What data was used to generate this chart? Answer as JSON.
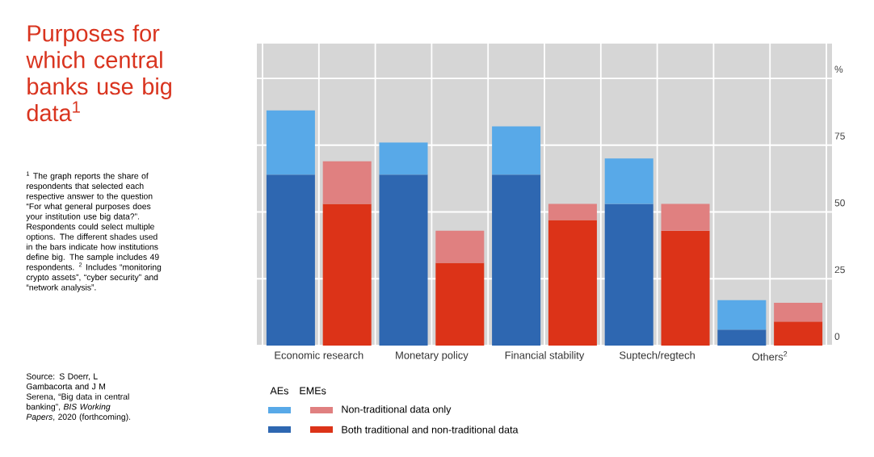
{
  "chart_data": {
    "type": "bar",
    "title": "Purposes for which central banks use big data$^{1}$",
    "categories": [
      "Economic research",
      null,
      "Monetary policy",
      null,
      "Financial stability",
      null,
      "Suptech/regtech",
      null,
      "Others$^{2}$",
      null
    ],
    "series": [
      {
        "name": "Both traditional and non-traditional data",
        "colors": [
          "#2e67b1",
          "#dc3318",
          "#2e67b1",
          "#dc3318",
          "#2e67b1",
          "#dc3318",
          "#2e67b1",
          "#dc3318",
          "#2e67b1",
          "#dc3318"
        ],
        "values": [
          64,
          53,
          64,
          31,
          64,
          47,
          53,
          43,
          6,
          9
        ]
      },
      {
        "name": "Non-traditional data only",
        "colors": [
          "#58a9e8",
          "#e08080",
          "#58a9e8",
          "#e08080",
          "#58a9e8",
          "#e08080",
          "#58a9e8",
          "#e08080",
          "#58a9e8",
          "#e08080"
        ],
        "values": [
          24,
          16,
          12,
          12,
          18,
          6,
          17,
          10,
          11,
          7
        ]
      }
    ],
    "stacked": true,
    "ylim": [
      0,
      113
    ],
    "yticks": [
      0,
      25,
      50,
      75,
      {
        "value": 100,
        "label": "%"
      }
    ],
    "grid": true,
    "legend": "bottom",
    "annotations": [
      "AEs",
      "EMEs",
      "$^{1}$ The graph reports the share of respondents that selected each respective answer to the question “For what general purposes does your institution use big data?”. Respondents could select multiple options. The different shades used in the bars indicate how institutions define big. The sample includes 49 respondents. $^{2}$ Includes “monitoring crypto assets”, “cyber security” and “network analysis”.",
      "Source: S Doerr, L Gambacorta and J M Serena, “Big data in central banking”, *BIS Working Papers*, 2020 (forthcoming)."
    ]
  }
}
